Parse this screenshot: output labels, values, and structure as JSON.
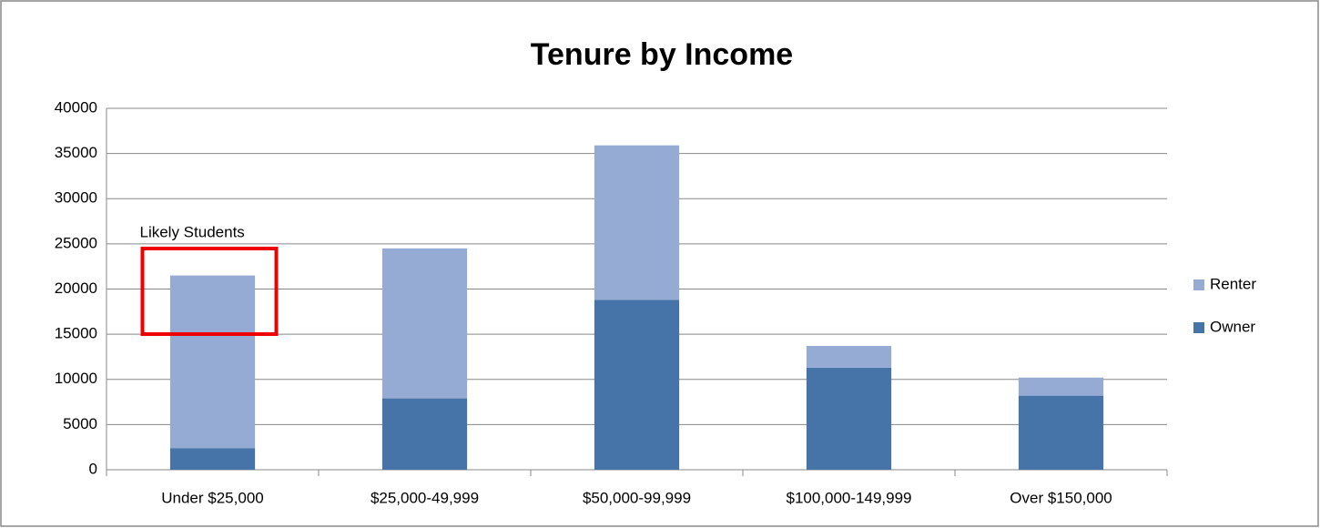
{
  "chart_data": {
    "type": "stacked_bar",
    "title": "Tenure by Income",
    "categories": [
      "Under $25,000",
      "$25,000-49,999",
      "$50,000-99,999",
      "$100,000-149,999",
      "Over $150,000"
    ],
    "series": [
      {
        "name": "Owner",
        "color": "#4674a8",
        "values": [
          2400,
          7900,
          18800,
          11300,
          8200
        ]
      },
      {
        "name": "Renter",
        "color": "#95abd3",
        "values": [
          19100,
          16600,
          17100,
          2400,
          2000
        ]
      }
    ],
    "ylim": [
      0,
      40000
    ],
    "yticks": [
      0,
      5000,
      10000,
      15000,
      20000,
      25000,
      30000,
      35000,
      40000
    ],
    "grid": true,
    "legend": "right",
    "annotation": "Likely Students"
  }
}
